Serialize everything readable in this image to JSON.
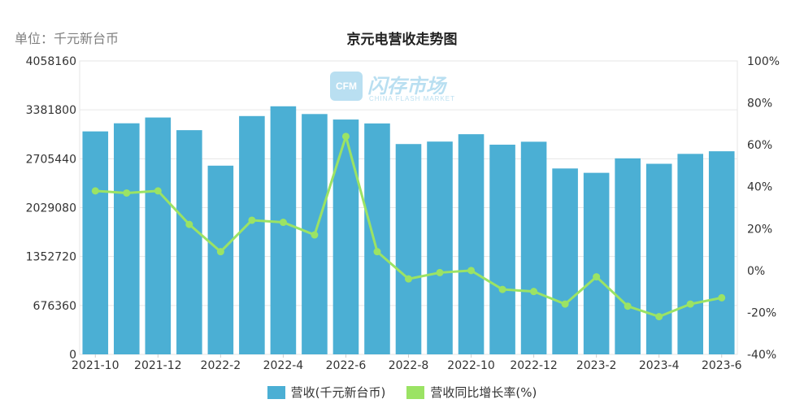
{
  "header": {
    "unit": "单位：千元新台币",
    "title": "京元电营收走势图"
  },
  "watermark": {
    "logo": "CFM",
    "name": "闪存市场",
    "subtitle": "CHINA FLASH MARKET"
  },
  "chart_data": {
    "type": "bar",
    "title": "京元电营收走势图",
    "categories": [
      "2021-10",
      "2021-11",
      "2021-12",
      "2022-1",
      "2022-2",
      "2022-3",
      "2022-4",
      "2022-5",
      "2022-6",
      "2022-7",
      "2022-8",
      "2022-9",
      "2022-10",
      "2022-11",
      "2022-12",
      "2023-1",
      "2023-2",
      "2023-3",
      "2023-4",
      "2023-5",
      "2023-6"
    ],
    "x_tick_labels": [
      "2021-10",
      "2021-12",
      "2022-2",
      "2022-4",
      "2022-6",
      "2022-8",
      "2022-10",
      "2022-12",
      "2023-2",
      "2023-4",
      "2023-6"
    ],
    "series": [
      {
        "name": "营收(千元新台币)",
        "type": "bar",
        "axis": "left",
        "color": "#4bafd4",
        "values": [
          3084000,
          3196000,
          3276000,
          3101000,
          2610000,
          3296000,
          3431000,
          3324000,
          3248000,
          3194000,
          2909000,
          2943000,
          3045000,
          2900000,
          2941000,
          2571000,
          2511000,
          2711000,
          2636000,
          2773000,
          2809000
        ]
      },
      {
        "name": "营收同比增长率(%)",
        "type": "line",
        "axis": "right",
        "color": "#9be364",
        "values": [
          38,
          37,
          38,
          22,
          9,
          24,
          23,
          17,
          64,
          9,
          -4,
          -1,
          0,
          -9,
          -10,
          -16,
          -3,
          -17,
          -22,
          -16,
          -13
        ]
      }
    ],
    "y_left": {
      "min": 0,
      "max": 4058160,
      "ticks": [
        "0",
        "676360",
        "1352720",
        "2029080",
        "2705440",
        "3381800",
        "4058160"
      ]
    },
    "y_right": {
      "min": -40,
      "max": 100,
      "ticks": [
        "-40%",
        "-20%",
        "0%",
        "20%",
        "40%",
        "60%",
        "80%",
        "100%"
      ]
    },
    "grid": true,
    "legend_position": "bottom"
  }
}
